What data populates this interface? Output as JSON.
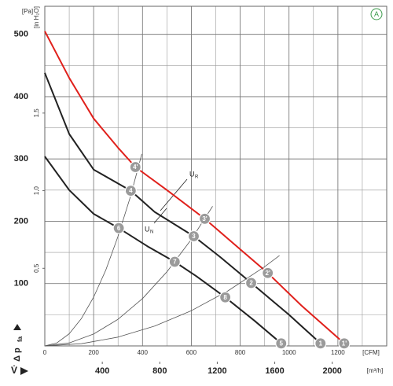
{
  "chart_data": {
    "type": "line",
    "y_symbol": {
      "main": "Δ p",
      "sub": "fa"
    },
    "x_symbol": "V̇",
    "y_unit": "[Pa]",
    "y2_unit": "[in H₂O]",
    "x_unit": "[CFM]",
    "x2_unit": "[m³/h]",
    "badge": "A",
    "xlim": [
      0,
      1400
    ],
    "xticks": [
      0,
      200,
      400,
      600,
      800,
      1000,
      1200
    ],
    "x2lim": [
      0,
      2379
    ],
    "x2ticks": [
      400,
      800,
      1200,
      1600,
      2000
    ],
    "ylim": [
      0,
      545
    ],
    "yticks": [
      100,
      200,
      300,
      400,
      500
    ],
    "y2lim": [
      0,
      2.188
    ],
    "y2ticks": [
      {
        "value": 0.5,
        "label": "0,5"
      },
      {
        "value": 1.0,
        "label": "1,0"
      },
      {
        "value": 1.5,
        "label": "1,5"
      }
    ],
    "grid": true,
    "series": [
      {
        "color": "#e0201b",
        "linewidth": 2,
        "x": [
          0,
          100,
          200,
          300,
          371,
          500,
          655,
          800,
          913,
          1050,
          1226
        ],
        "values": [
          505,
          430,
          365,
          318,
          287,
          250,
          204,
          155,
          117,
          65,
          4
        ]
      },
      {
        "color": "#222222",
        "linewidth": 2,
        "x": [
          0,
          100,
          200,
          352,
          450,
          610,
          720,
          845,
          1000,
          1129
        ],
        "values": [
          438,
          340,
          283,
          249,
          215,
          176,
          142,
          101,
          50,
          4
        ]
      },
      {
        "color": "#222222",
        "linewidth": 2,
        "x": [
          0,
          100,
          200,
          303,
          420,
          532,
          620,
          739,
          860,
          968
        ],
        "values": [
          304,
          250,
          212,
          189,
          160,
          135,
          112,
          78,
          40,
          4
        ]
      },
      {
        "color": "#555555",
        "linewidth": 0.8,
        "x": [
          0,
          50,
          100,
          150,
          200,
          250,
          300,
          350,
          397
        ],
        "values": [
          0,
          4.9,
          19.5,
          44,
          78.2,
          122,
          176,
          239,
          308
        ]
      },
      {
        "color": "#555555",
        "linewidth": 0.8,
        "x": [
          0,
          100,
          200,
          300,
          400,
          500,
          600,
          687
        ],
        "values": [
          0,
          4.8,
          19,
          42.8,
          76,
          119,
          171,
          224
        ]
      },
      {
        "color": "#555555",
        "linewidth": 0.8,
        "x": [
          0,
          150,
          300,
          450,
          600,
          750,
          900,
          961
        ],
        "values": [
          0,
          3.5,
          14.1,
          31.8,
          56.5,
          88.3,
          127,
          145
        ]
      }
    ],
    "markers": [
      {
        "label": "1'",
        "x": 1226,
        "y": 4
      },
      {
        "label": "2'",
        "x": 913,
        "y": 117
      },
      {
        "label": "3'",
        "x": 655,
        "y": 204
      },
      {
        "label": "4'",
        "x": 371,
        "y": 287
      },
      {
        "label": "1",
        "x": 1129,
        "y": 4
      },
      {
        "label": "2",
        "x": 845,
        "y": 101
      },
      {
        "label": "3",
        "x": 610,
        "y": 176
      },
      {
        "label": "4",
        "x": 352,
        "y": 249
      },
      {
        "label": "5",
        "x": 968,
        "y": 4
      },
      {
        "label": "6",
        "x": 303,
        "y": 189
      },
      {
        "label": "7",
        "x": 532,
        "y": 135
      },
      {
        "label": "8",
        "x": 739,
        "y": 78
      }
    ],
    "annotations": [
      {
        "main": "U",
        "sub": "R"
      },
      {
        "main": "U",
        "sub": "N"
      }
    ]
  }
}
